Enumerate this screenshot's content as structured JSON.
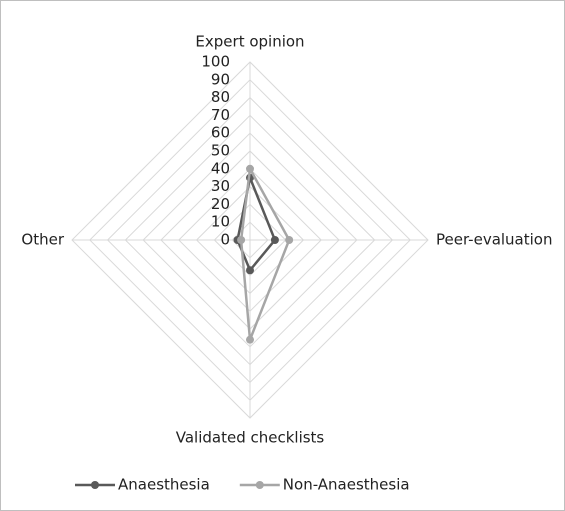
{
  "chart_data": {
    "type": "radar",
    "categories": [
      "Expert opinion",
      "Peer-evaluation",
      "Validated checklists",
      "Other"
    ],
    "series": [
      {
        "name": "Anaesthesia",
        "color": "#595959",
        "values": [
          35,
          14,
          17,
          7
        ]
      },
      {
        "name": "Non-Anaesthesia",
        "color": "#a6a6a6",
        "values": [
          40,
          22,
          56,
          5
        ]
      }
    ],
    "rlim": [
      0,
      100
    ],
    "rticks": [
      0,
      10,
      20,
      30,
      40,
      50,
      60,
      70,
      80,
      90,
      100
    ],
    "grid": true,
    "legend": "bottom"
  }
}
